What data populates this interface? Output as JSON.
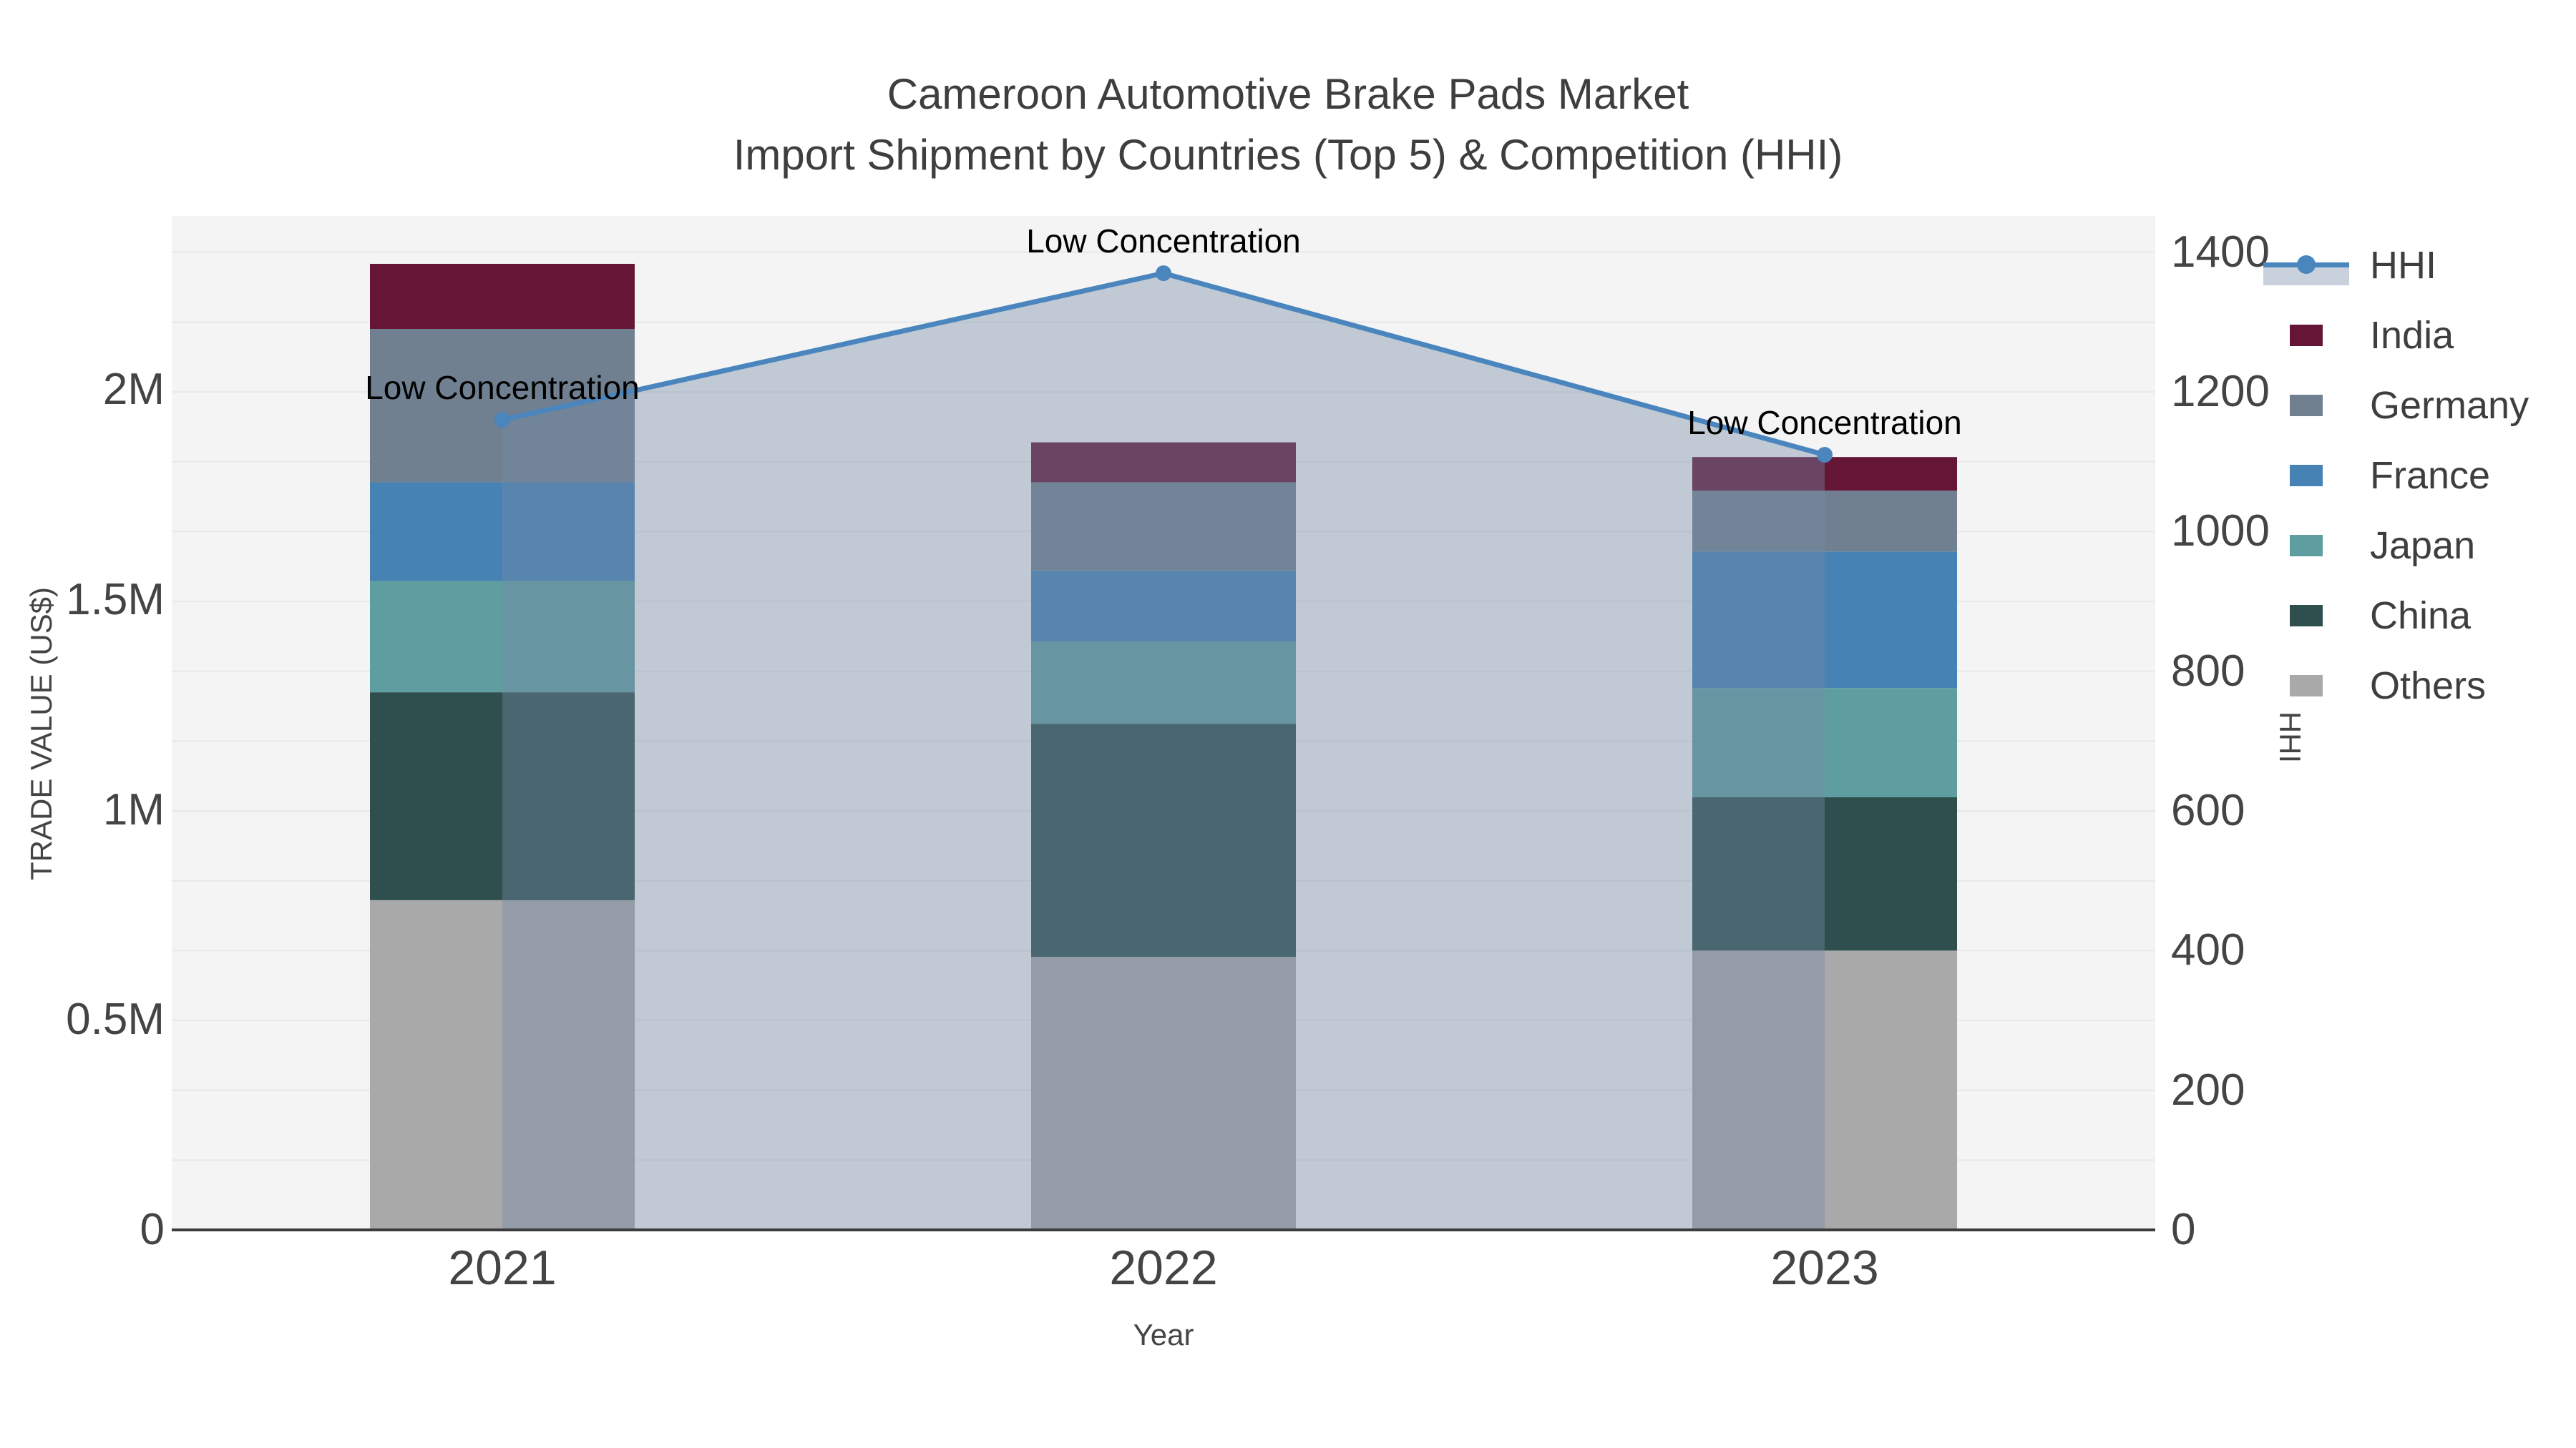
{
  "title": {
    "line1": "Cameroon Automotive Brake Pads Market",
    "line2": "Import Shipment by Countries (Top 5) & Competition (HHI)"
  },
  "axes": {
    "x": {
      "title": "Year",
      "categories": [
        "2021",
        "2022",
        "2023"
      ]
    },
    "y_left": {
      "title": "TRADE VALUE (US$)",
      "tick_labels": [
        "0",
        "0.5M",
        "1M",
        "1.5M",
        "2M"
      ],
      "tick_values": [
        0,
        500000,
        1000000,
        1500000,
        2000000
      ],
      "max": 2414000
    },
    "y_right": {
      "title": "HHI",
      "tick_labels": [
        "0",
        "200",
        "400",
        "600",
        "800",
        "1000",
        "1200",
        "1400"
      ],
      "tick_values": [
        0,
        200,
        400,
        600,
        800,
        1000,
        1200,
        1400
      ],
      "max": 1452,
      "gridline_step": 100
    }
  },
  "legend": {
    "items": [
      {
        "label": "HHI",
        "type": "line",
        "color": "#4a86bd",
        "fill": "#c9d2dc"
      },
      {
        "label": "India",
        "type": "box",
        "color": "#651637"
      },
      {
        "label": "Germany",
        "type": "box",
        "color": "#708090"
      },
      {
        "label": "France",
        "type": "box",
        "color": "#4682b4"
      },
      {
        "label": "Japan",
        "type": "box",
        "color": "#5f9ea0"
      },
      {
        "label": "China",
        "type": "box",
        "color": "#2f4f4f"
      },
      {
        "label": "Others",
        "type": "box",
        "color": "#a9a9a9"
      }
    ]
  },
  "chart_data": {
    "type": "bar",
    "barmode": "stack",
    "title": "Cameroon Automotive Brake Pads Market Import Shipment by Countries (Top 5) & Competition (HHI)",
    "xlabel": "Year",
    "ylabel": "TRADE VALUE (US$)",
    "ylabel_right": "HHI",
    "categories": [
      "2021",
      "2022",
      "2023"
    ],
    "series": [
      {
        "name": "Others",
        "color": "#a9a9a9",
        "values": [
          785000,
          650000,
          665000
        ]
      },
      {
        "name": "China",
        "color": "#2f4f4f",
        "values": [
          495000,
          555000,
          365000
        ]
      },
      {
        "name": "Japan",
        "color": "#5f9ea0",
        "values": [
          265000,
          195000,
          260000
        ]
      },
      {
        "name": "France",
        "color": "#4682b4",
        "values": [
          235000,
          170000,
          325000
        ]
      },
      {
        "name": "Germany",
        "color": "#708090",
        "values": [
          365000,
          210000,
          145000
        ]
      },
      {
        "name": "India",
        "color": "#651637",
        "values": [
          155000,
          95000,
          80000
        ]
      }
    ],
    "line_series": {
      "name": "HHI",
      "axis": "right",
      "color": "#4a86bd",
      "area_fill": "rgba(114,138,164,0.4)",
      "values": [
        1160,
        1370,
        1110
      ]
    },
    "annotations": [
      {
        "text": "Low Concentration",
        "category": "2021"
      },
      {
        "text": "Low Concentration",
        "category": "2022"
      },
      {
        "text": "Low Concentration",
        "category": "2023"
      }
    ],
    "ylim_left": [
      0,
      2414000
    ],
    "ylim_right": [
      0,
      1452
    ],
    "plot_background": "#f4f4f4",
    "gridlines": "horizontal, right axis every 100, #e8e8e8",
    "legend_position": "right"
  }
}
